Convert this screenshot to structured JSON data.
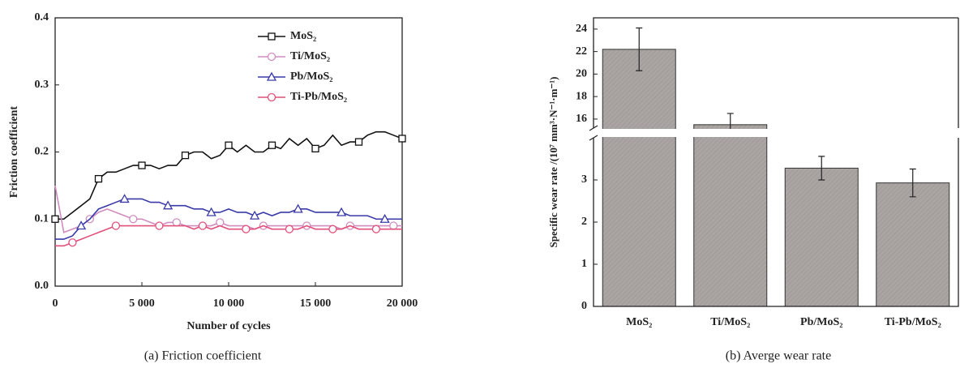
{
  "chart_data": [
    {
      "type": "line",
      "xlabel": "Number of cycles",
      "ylabel": "Friction coefficient",
      "caption": "(a) Friction coefficient",
      "x": [
        0,
        500,
        1000,
        1500,
        2000,
        2500,
        3000,
        3500,
        4000,
        4500,
        5000,
        5500,
        6000,
        6500,
        7000,
        7500,
        8000,
        8500,
        9000,
        9500,
        10000,
        10500,
        11000,
        11500,
        12000,
        12500,
        13000,
        13500,
        14000,
        14500,
        15000,
        15500,
        16000,
        16500,
        17000,
        17500,
        18000,
        18500,
        19000,
        19500,
        20000
      ],
      "series": [
        {
          "name": "MoS₂",
          "color": "#111111",
          "marker": "square",
          "values": [
            0.1,
            0.1,
            0.11,
            0.12,
            0.13,
            0.16,
            0.17,
            0.17,
            0.175,
            0.18,
            0.18,
            0.18,
            0.175,
            0.18,
            0.18,
            0.195,
            0.2,
            0.2,
            0.19,
            0.195,
            0.21,
            0.2,
            0.21,
            0.2,
            0.2,
            0.21,
            0.205,
            0.22,
            0.21,
            0.22,
            0.205,
            0.21,
            0.225,
            0.21,
            0.215,
            0.215,
            0.225,
            0.23,
            0.23,
            0.225,
            0.22
          ]
        },
        {
          "name": "Ti/MoS₂",
          "color": "#d08cc0",
          "marker": "circle",
          "values": [
            0.15,
            0.08,
            0.085,
            0.09,
            0.1,
            0.11,
            0.115,
            0.11,
            0.105,
            0.1,
            0.1,
            0.095,
            0.09,
            0.095,
            0.095,
            0.09,
            0.09,
            0.09,
            0.09,
            0.095,
            0.09,
            0.09,
            0.09,
            0.085,
            0.09,
            0.09,
            0.09,
            0.09,
            0.09,
            0.09,
            0.09,
            0.09,
            0.09,
            0.085,
            0.09,
            0.09,
            0.09,
            0.09,
            0.09,
            0.09,
            0.09
          ]
        },
        {
          "name": "Pb/MoS₂",
          "color": "#3a3aa8",
          "marker": "triangle",
          "values": [
            0.07,
            0.07,
            0.075,
            0.09,
            0.1,
            0.115,
            0.12,
            0.125,
            0.13,
            0.13,
            0.13,
            0.125,
            0.125,
            0.12,
            0.12,
            0.12,
            0.115,
            0.115,
            0.11,
            0.11,
            0.115,
            0.11,
            0.11,
            0.105,
            0.11,
            0.105,
            0.11,
            0.11,
            0.115,
            0.115,
            0.11,
            0.11,
            0.11,
            0.11,
            0.105,
            0.105,
            0.105,
            0.1,
            0.1,
            0.1,
            0.1
          ]
        },
        {
          "name": "Ti-Pb/MoS₂",
          "color": "#e0507a",
          "marker": "circle",
          "values": [
            0.06,
            0.06,
            0.065,
            0.07,
            0.075,
            0.08,
            0.085,
            0.09,
            0.09,
            0.09,
            0.09,
            0.09,
            0.09,
            0.09,
            0.09,
            0.09,
            0.085,
            0.09,
            0.085,
            0.09,
            0.085,
            0.085,
            0.085,
            0.085,
            0.09,
            0.085,
            0.085,
            0.085,
            0.085,
            0.09,
            0.085,
            0.085,
            0.085,
            0.085,
            0.09,
            0.085,
            0.085,
            0.085,
            0.085,
            0.085,
            0.085
          ]
        }
      ],
      "xlim": [
        0,
        20000
      ],
      "xticks": [
        0,
        {
          "value": 5000,
          "label": "5 000"
        },
        {
          "value": 10000,
          "label": "10 000"
        },
        {
          "value": 15000,
          "label": "15 000"
        },
        {
          "value": 20000,
          "label": "20 000"
        }
      ],
      "ylim": [
        0,
        0.4
      ],
      "yticks": [
        {
          "value": 0,
          "label": "0.0"
        },
        0.1,
        0.2,
        0.3,
        0.4
      ],
      "legend": "upper right"
    },
    {
      "type": "bar",
      "ylabel": "Specific wear rate /(10⁷ mm³·N⁻¹·m⁻¹)",
      "caption": "(b) Averge wear rate",
      "categories": [
        "MoS₂",
        "Ti/MoS₂",
        "Pb/MoS₂",
        "Ti-Pb/MoS₂"
      ],
      "values": [
        22.2,
        15.5,
        3.28,
        2.93
      ],
      "errors": [
        1.9,
        1.0,
        0.28,
        0.33
      ],
      "color": "#aaa5a3",
      "ylim": [
        0,
        25
      ],
      "axis_break": [
        4,
        15.2
      ],
      "yticks": [
        0,
        1,
        2,
        3,
        16,
        18,
        20,
        22,
        24
      ]
    }
  ]
}
